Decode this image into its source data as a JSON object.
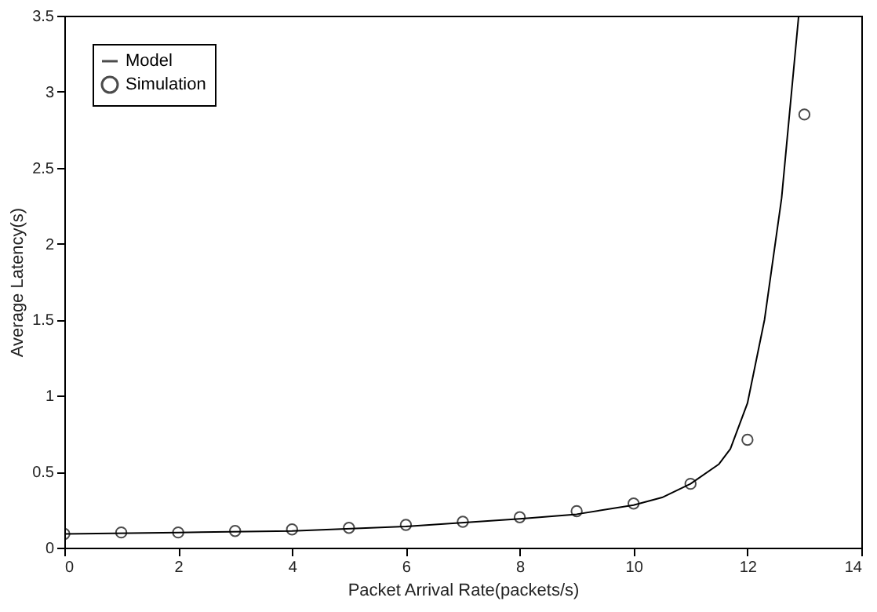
{
  "chart_data": {
    "type": "scatter",
    "xlabel": "Packet Arrival Rate(packets/s)",
    "ylabel": "Average Latency(s)",
    "xlim": [
      0,
      14
    ],
    "ylim": [
      0,
      3.5
    ],
    "xticks": [
      0,
      2,
      4,
      6,
      8,
      10,
      12,
      14
    ],
    "yticks": [
      0,
      0.5,
      1,
      1.5,
      2,
      2.5,
      3,
      3.5
    ],
    "grid": false,
    "legend": "top left",
    "series": [
      {
        "name": "Model",
        "type": "line",
        "marker": "none",
        "color": "#000000",
        "x": [
          0,
          2,
          4,
          6,
          8,
          9,
          10,
          10.5,
          11,
          11.5,
          11.7,
          12,
          12.3,
          12.6,
          12.9
        ],
        "values": [
          0.09,
          0.1,
          0.11,
          0.14,
          0.19,
          0.22,
          0.28,
          0.33,
          0.42,
          0.55,
          0.65,
          0.95,
          1.5,
          2.3,
          3.5
        ]
      },
      {
        "name": "Simulation",
        "marker": "circle",
        "color": "#000000",
        "x": [
          0,
          1,
          2,
          3,
          4,
          5,
          6,
          7,
          8,
          9,
          10,
          11,
          12,
          13
        ],
        "values": [
          0.09,
          0.1,
          0.1,
          0.11,
          0.12,
          0.13,
          0.15,
          0.17,
          0.2,
          0.24,
          0.29,
          0.42,
          0.71,
          2.85
        ]
      }
    ]
  }
}
